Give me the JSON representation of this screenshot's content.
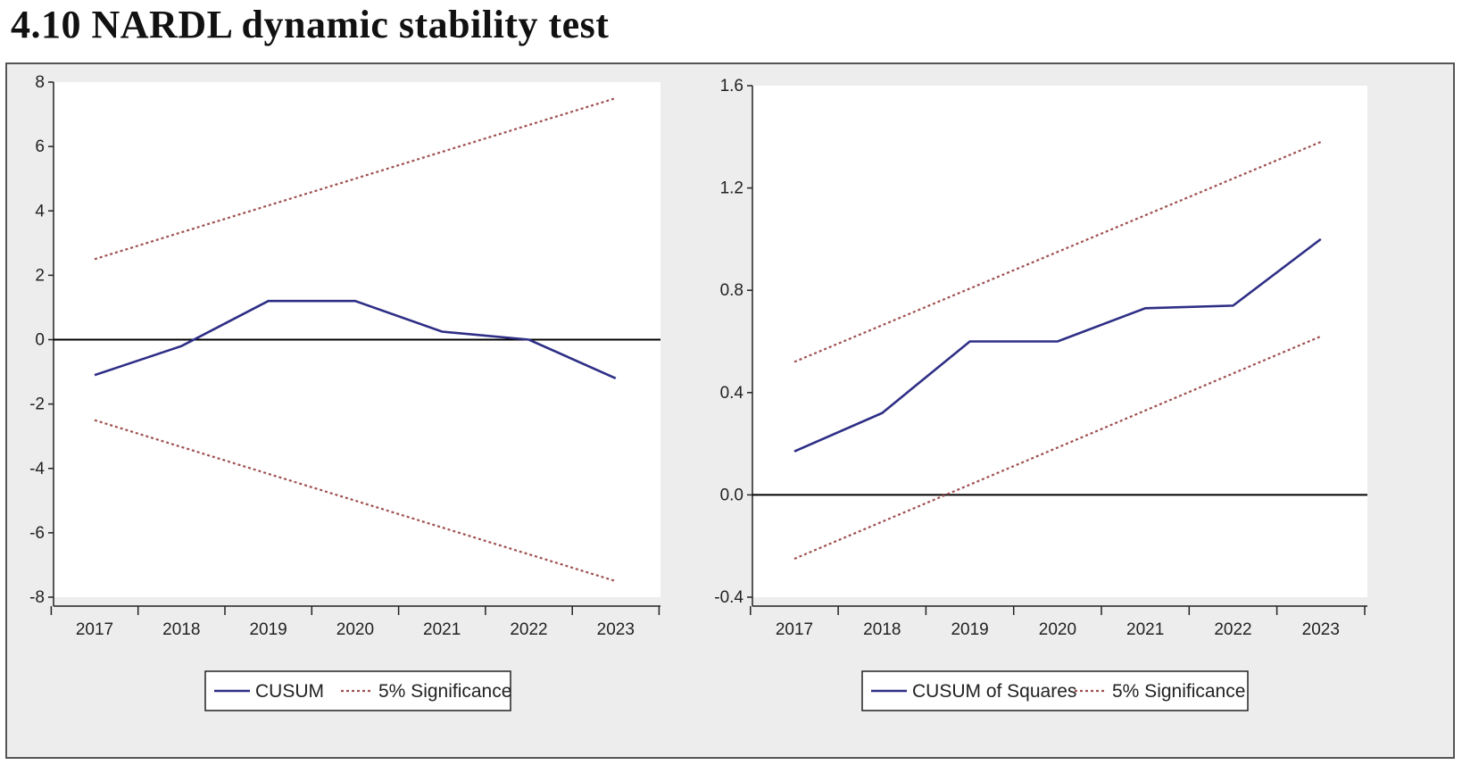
{
  "heading": "4.10 NARDL dynamic stability test",
  "chart_data": [
    {
      "type": "line",
      "x_ticks": [
        "2017",
        "2018",
        "2019",
        "2020",
        "2021",
        "2022",
        "2023"
      ],
      "x": [
        2017,
        2018,
        2019,
        2020,
        2021,
        2022,
        2023
      ],
      "ylim": [
        -8,
        8
      ],
      "y_ticks": [
        "8",
        "6",
        "4",
        "2",
        "0",
        "-2",
        "-4",
        "-6",
        "-8"
      ],
      "y_tick_values": [
        8,
        6,
        4,
        2,
        0,
        -2,
        -4,
        -6,
        -8
      ],
      "grid": false,
      "legend": "bottom",
      "colors": {
        "series": "#2e2e86",
        "bound": "#a05050",
        "zero": "#000000"
      },
      "series": [
        {
          "name": "CUSUM",
          "x": [
            2017,
            2018,
            2019,
            2020,
            2021,
            2022,
            2023
          ],
          "values": [
            -1.1,
            -0.2,
            1.2,
            1.2,
            0.25,
            0.0,
            -1.2
          ]
        },
        {
          "name": "5% Significance",
          "x": [
            2017,
            2023
          ],
          "values": [
            2.5,
            7.5
          ]
        },
        {
          "x": [
            2017,
            2023
          ],
          "values": [
            -2.5,
            -7.5
          ]
        }
      ]
    },
    {
      "type": "line",
      "x_ticks": [
        "2017",
        "2018",
        "2019",
        "2020",
        "2021",
        "2022",
        "2023"
      ],
      "x": [
        2017,
        2018,
        2019,
        2020,
        2021,
        2022,
        2023
      ],
      "ylim": [
        -0.4,
        1.6
      ],
      "y_ticks": [
        "1.6",
        "1.2",
        "0.8",
        "0.4",
        "0.0",
        "-0.4"
      ],
      "y_tick_values": [
        1.6,
        1.2,
        0.8,
        0.4,
        0.0,
        -0.4
      ],
      "grid": false,
      "legend": "bottom",
      "colors": {
        "series": "#2e2e86",
        "bound": "#a05050",
        "zero": "#000000"
      },
      "series": [
        {
          "name": "CUSUM of Squares",
          "x": [
            2017,
            2018,
            2019,
            2020,
            2021,
            2022,
            2023
          ],
          "values": [
            0.17,
            0.32,
            0.6,
            0.6,
            0.73,
            0.74,
            1.0
          ]
        },
        {
          "name": "5% Significance",
          "x": [
            2017,
            2023
          ],
          "values": [
            0.52,
            1.38
          ]
        },
        {
          "x": [
            2017,
            2023
          ],
          "values": [
            -0.25,
            0.62
          ]
        }
      ]
    }
  ]
}
